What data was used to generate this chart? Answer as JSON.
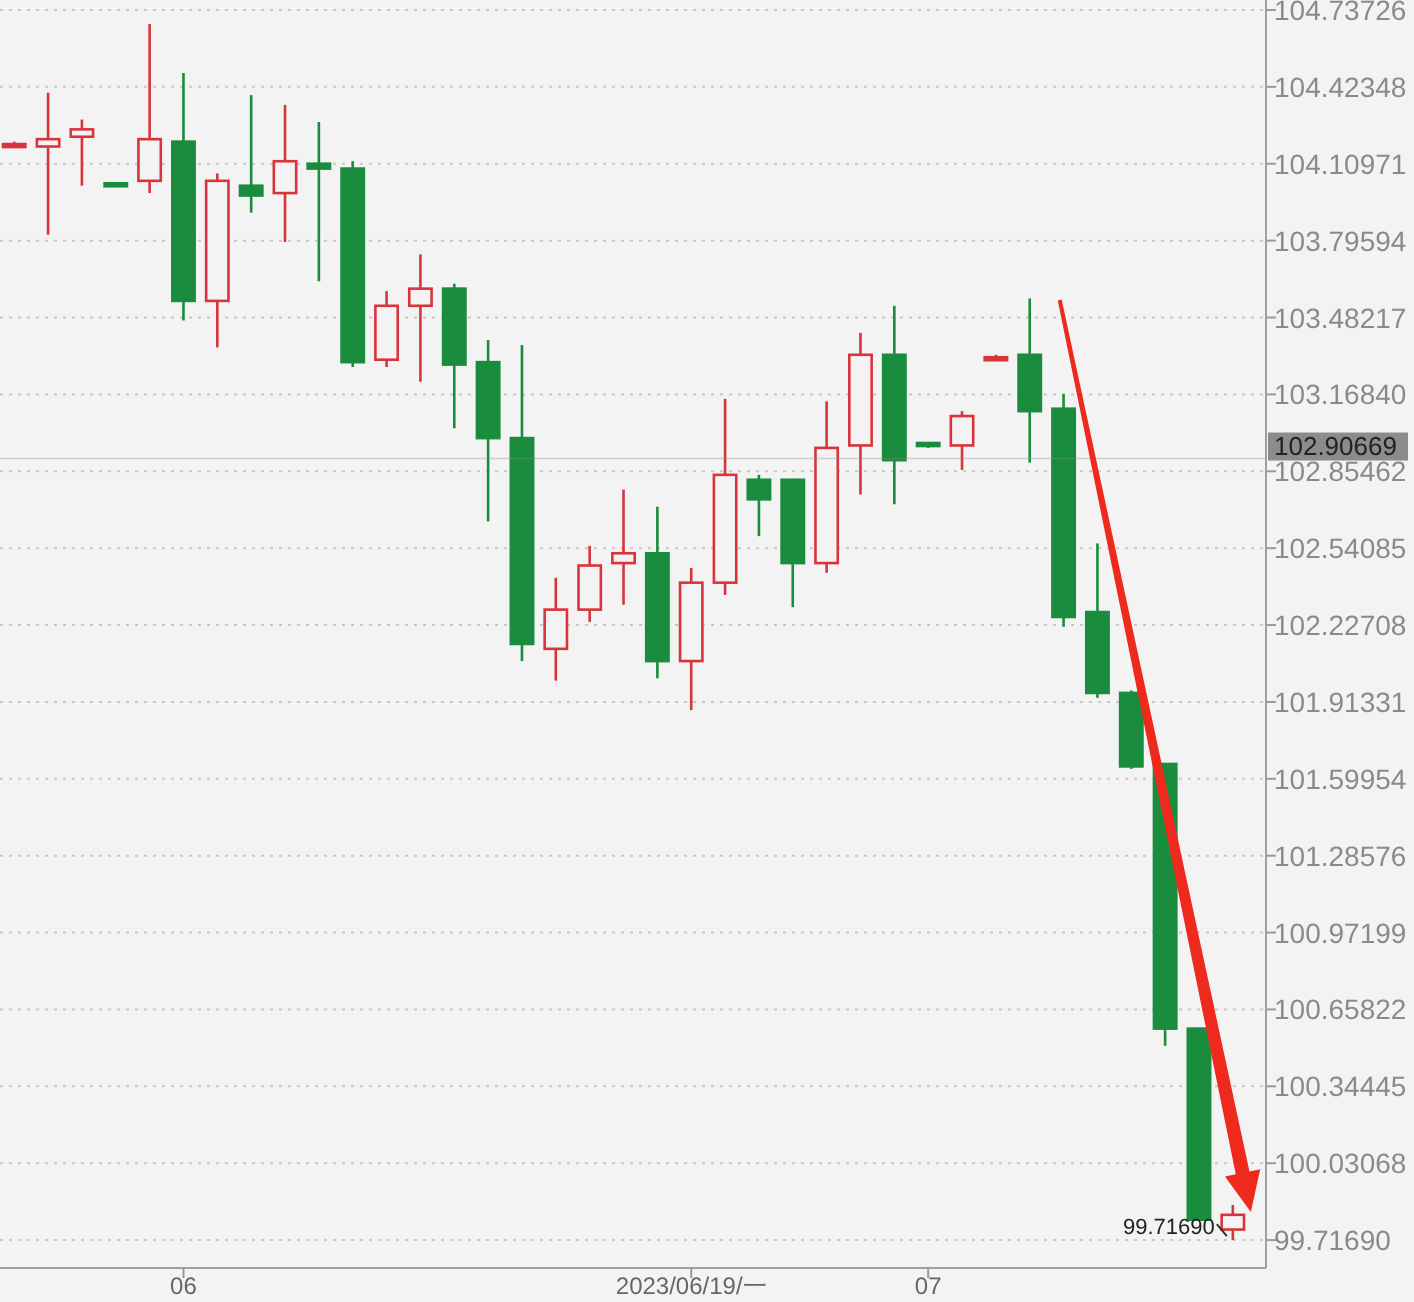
{
  "chart_data": {
    "type": "candlestick",
    "categories": [
      null,
      null,
      null,
      null,
      null,
      "06",
      null,
      null,
      null,
      null,
      null,
      null,
      null,
      null,
      null,
      null,
      null,
      null,
      null,
      null,
      "2023/06/19/一",
      null,
      null,
      null,
      null,
      null,
      null,
      "07",
      null,
      null,
      null,
      null,
      null,
      null,
      null,
      null,
      null
    ],
    "ohlc": [
      [
        104.19,
        104.2,
        104.18,
        104.19
      ],
      [
        104.18,
        104.4,
        103.82,
        104.21
      ],
      [
        104.22,
        104.29,
        104.02,
        104.25
      ],
      [
        104.03,
        104.03,
        104.03,
        104.03
      ],
      [
        104.04,
        104.68,
        103.99,
        104.21
      ],
      [
        104.2,
        104.48,
        103.47,
        103.55
      ],
      [
        103.55,
        104.07,
        103.36,
        104.04
      ],
      [
        104.02,
        104.39,
        103.91,
        103.98
      ],
      [
        103.99,
        104.35,
        103.79,
        104.12
      ],
      [
        104.11,
        104.28,
        103.63,
        104.09
      ],
      [
        104.09,
        104.12,
        103.28,
        103.3
      ],
      [
        103.31,
        103.59,
        103.28,
        103.53
      ],
      [
        103.53,
        103.74,
        103.22,
        103.6
      ],
      [
        103.6,
        103.62,
        103.03,
        103.29
      ],
      [
        103.3,
        103.39,
        102.65,
        102.99
      ],
      [
        102.99,
        103.37,
        102.08,
        102.15
      ],
      [
        102.13,
        102.42,
        102.0,
        102.29
      ],
      [
        102.29,
        102.55,
        102.24,
        102.47
      ],
      [
        102.48,
        102.78,
        102.31,
        102.52
      ],
      [
        102.52,
        102.71,
        102.01,
        102.08
      ],
      [
        102.08,
        102.46,
        101.88,
        102.4
      ],
      [
        102.4,
        103.15,
        102.35,
        102.84
      ],
      [
        102.82,
        102.84,
        102.59,
        102.74
      ],
      [
        102.82,
        102.82,
        102.3,
        102.48
      ],
      [
        102.48,
        103.14,
        102.44,
        102.95
      ],
      [
        102.96,
        103.42,
        102.76,
        103.33
      ],
      [
        103.33,
        103.53,
        102.72,
        102.9
      ],
      [
        102.97,
        102.97,
        102.95,
        102.96
      ],
      [
        102.96,
        103.1,
        102.86,
        103.08
      ],
      [
        103.32,
        103.33,
        103.31,
        103.32
      ],
      [
        103.33,
        103.56,
        102.89,
        103.1
      ],
      [
        103.11,
        103.17,
        102.22,
        102.26
      ],
      [
        102.28,
        102.56,
        101.93,
        101.95
      ],
      [
        101.95,
        101.96,
        101.64,
        101.65
      ],
      [
        101.66,
        101.66,
        100.51,
        100.58
      ],
      [
        100.58,
        100.58,
        99.8,
        99.8
      ],
      [
        99.76,
        99.86,
        99.7169,
        99.82
      ]
    ],
    "colors": [
      "#d8343c",
      "#d8343c",
      "#d8343c",
      "#1a8c3e",
      "#d8343c",
      "#1a8c3e",
      "#d8343c",
      "#1a8c3e",
      "#d8343c",
      "#1a8c3e",
      "#1a8c3e",
      "#d8343c",
      "#d8343c",
      "#1a8c3e",
      "#1a8c3e",
      "#1a8c3e",
      "#d8343c",
      "#d8343c",
      "#d8343c",
      "#1a8c3e",
      "#d8343c",
      "#d8343c",
      "#1a8c3e",
      "#1a8c3e",
      "#d8343c",
      "#d8343c",
      "#1a8c3e",
      "#1a8c3e",
      "#d8343c",
      "#d8343c",
      "#1a8c3e",
      "#1a8c3e",
      "#1a8c3e",
      "#1a8c3e",
      "#1a8c3e",
      "#1a8c3e",
      "#d8343c"
    ],
    "ylim": [
      99.603,
      104.778
    ],
    "yticks": [
      104.73726,
      104.42348,
      104.10971,
      103.79594,
      103.48217,
      {
        "value": 103.1684,
        "label": "103.16840"
      },
      102.85462,
      102.54085,
      102.22708,
      101.91331,
      101.59954,
      101.28576,
      100.97199,
      100.65822,
      100.34445,
      100.03068,
      {
        "value": 99.7169,
        "label": "99.71690"
      }
    ],
    "grid": "y",
    "ref_lines": [
      {
        "axis": "y",
        "value": 102.90669,
        "label": "102.90669",
        "color": "#8c8c8c"
      }
    ],
    "annotations": [
      "99.71690"
    ]
  }
}
